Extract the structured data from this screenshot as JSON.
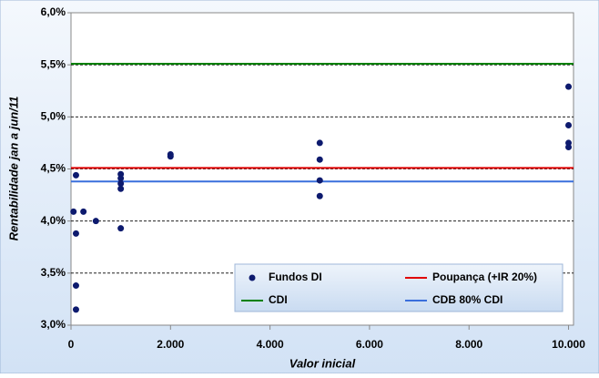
{
  "chart_data": {
    "type": "scatter",
    "xlabel": "Valor inicial",
    "ylabel": "Rentabilidade jan a jun/11",
    "xlim": [
      0,
      10100
    ],
    "ylim": [
      3.0,
      6.0
    ],
    "xticks": [
      0,
      {
        "value": 2000,
        "label": "2.000"
      },
      {
        "value": 4000,
        "label": "4.000"
      },
      {
        "value": 6000,
        "label": "6.000"
      },
      {
        "value": 8000,
        "label": "8.000"
      },
      {
        "value": 10000,
        "label": "10.000"
      }
    ],
    "yticks": [
      {
        "value": 3.0,
        "label": "3,0%"
      },
      {
        "value": 3.5,
        "label": "3,5%"
      },
      {
        "value": 4.0,
        "label": "4,0%"
      },
      {
        "value": 4.5,
        "label": "4,5%"
      },
      {
        "value": 5.0,
        "label": "5,0%"
      },
      {
        "value": 5.5,
        "label": "5,5%"
      },
      {
        "value": 6.0,
        "label": "6,0%"
      }
    ],
    "grid": true,
    "series": [
      {
        "name": "Fundos DI",
        "color": "#0d1a6e",
        "x": [
          50,
          100,
          100,
          100,
          100,
          250,
          500,
          1000,
          1000,
          1000,
          1000,
          1000,
          2000,
          2000,
          5000,
          5000,
          5000,
          5000,
          10000,
          10000,
          10000,
          10000
        ],
        "values": [
          4.09,
          4.44,
          3.88,
          3.38,
          3.15,
          4.09,
          4.0,
          4.45,
          4.41,
          4.36,
          4.31,
          3.93,
          4.64,
          4.62,
          4.75,
          4.59,
          4.39,
          4.24,
          5.29,
          4.92,
          4.75,
          4.71
        ]
      }
    ],
    "reference_lines": [
      {
        "name": "Poupança (+IR 20%)",
        "color": "#e00000",
        "value": 4.51
      },
      {
        "name": "CDI",
        "color": "#008000",
        "value": 5.51
      },
      {
        "name": "CDB 80% CDI",
        "color": "#3a6fdc",
        "value": 4.38
      }
    ]
  }
}
